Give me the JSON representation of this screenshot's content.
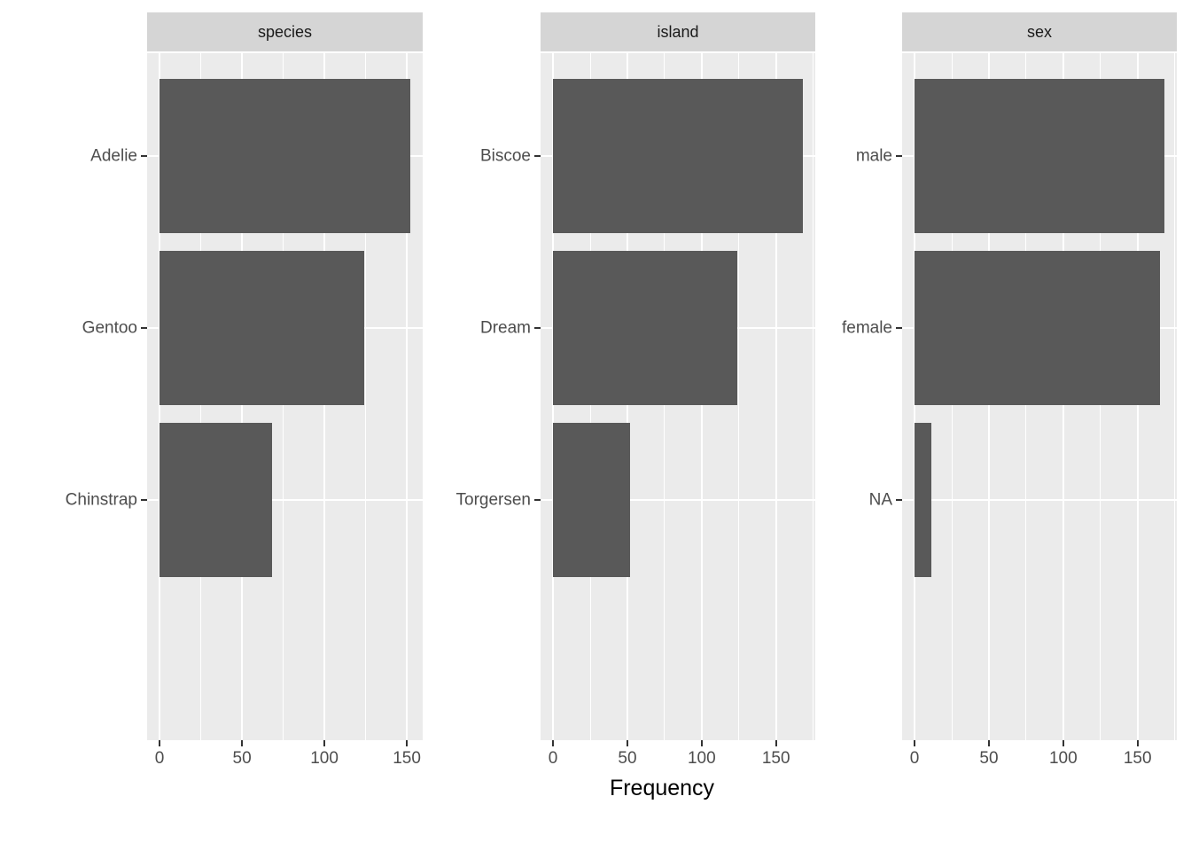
{
  "chart_data": {
    "type": "bar",
    "orientation": "horizontal",
    "title": "",
    "xlabel": "Frequency",
    "ylabel": "",
    "legend": false,
    "grid": true,
    "facets": [
      {
        "strip": "species",
        "categories": [
          "Adelie",
          "Gentoo",
          "Chinstrap"
        ],
        "values": [
          152,
          124,
          68
        ],
        "xlim": [
          -7.6,
          159.6
        ],
        "x_major_ticks": [
          0,
          50,
          100,
          150
        ],
        "x_minor_ticks": [
          25,
          75,
          125
        ]
      },
      {
        "strip": "island",
        "categories": [
          "Biscoe",
          "Dream",
          "Torgersen"
        ],
        "values": [
          168,
          124,
          52
        ],
        "xlim": [
          -8.4,
          176.4
        ],
        "x_major_ticks": [
          0,
          50,
          100,
          150
        ],
        "x_minor_ticks": [
          25,
          75,
          125,
          175
        ]
      },
      {
        "strip": "sex",
        "categories": [
          "male",
          "female",
          "NA"
        ],
        "values": [
          168,
          165,
          11
        ],
        "xlim": [
          -8.4,
          176.4
        ],
        "x_major_ticks": [
          0,
          50,
          100,
          150
        ],
        "x_minor_ticks": [
          25,
          75,
          125,
          175
        ]
      }
    ],
    "colors": {
      "bar_fill": "#595959",
      "panel_background": "#EBEBEB",
      "strip_background": "#D5D5D5",
      "gridline": "#FFFFFF",
      "axis_text": "#4D4D4D",
      "strip_text": "#1A1A1A",
      "tick_mark": "#333333",
      "axis_title": "#000000",
      "page_background": "#FFFFFF"
    }
  }
}
